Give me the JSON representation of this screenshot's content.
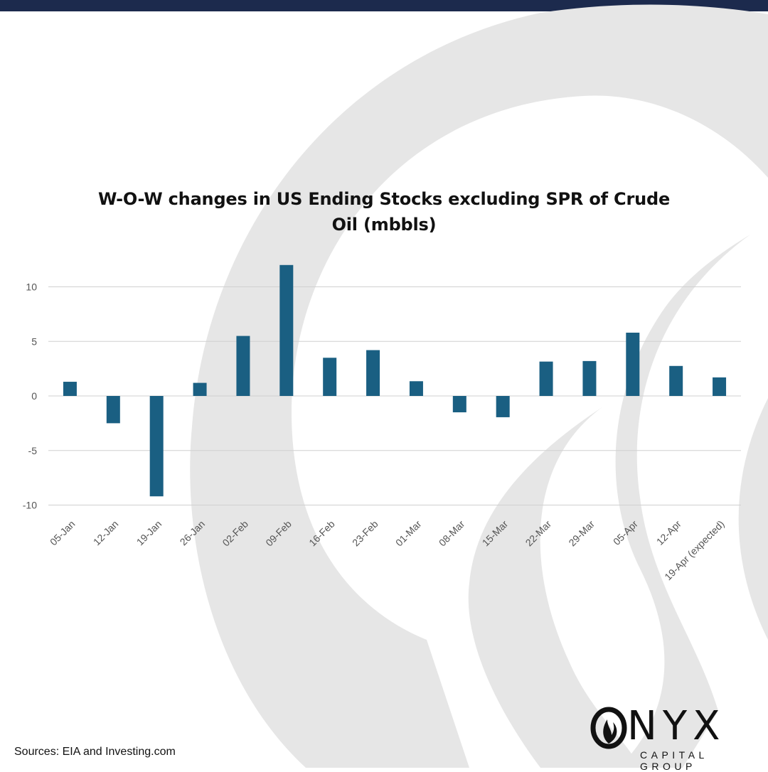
{
  "chart_data": {
    "type": "bar",
    "title": "W-O-W changes in US Ending Stocks excluding SPR of Crude Oil (mbbls)",
    "categories": [
      "05-Jan",
      "12-Jan",
      "19-Jan",
      "26-Jan",
      "02-Feb",
      "09-Feb",
      "16-Feb",
      "23-Feb",
      "01-Mar",
      "08-Mar",
      "15-Mar",
      "22-Mar",
      "29-Mar",
      "05-Apr",
      "12-Apr",
      "19-Apr (expected)"
    ],
    "values": [
      1.3,
      -2.5,
      -9.2,
      1.2,
      5.5,
      12.0,
      3.5,
      4.2,
      1.35,
      -1.5,
      -1.95,
      3.15,
      3.2,
      5.8,
      2.75,
      1.7
    ],
    "yticks": [
      10,
      5,
      0,
      -5,
      -10
    ],
    "ylim": [
      -10,
      12
    ],
    "grid": true,
    "bar_color": "#1a5f82",
    "xlabel": "",
    "ylabel": ""
  },
  "header": {
    "bar_color": "#1c2a4d"
  },
  "footer": {
    "sources": "Sources: EIA and Investing.com"
  },
  "logo": {
    "word": "NYX",
    "subtitle": "CAPITAL GROUP"
  }
}
